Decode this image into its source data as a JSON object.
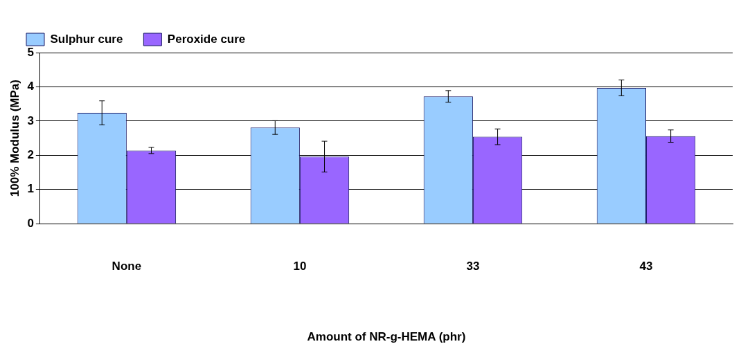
{
  "chart_data": {
    "type": "bar",
    "xlabel": "Amount of NR-g-HEMA (phr)",
    "ylabel": "100% Modulus (MPa)",
    "categories": [
      "None",
      "10",
      "33",
      "43"
    ],
    "series": [
      {
        "name": "Sulphur cure",
        "color": "#99ccff",
        "values": [
          3.24,
          2.81,
          3.72,
          3.97
        ],
        "errors": [
          0.35,
          0.2,
          0.17,
          0.23
        ]
      },
      {
        "name": "Peroxide cure",
        "color": "#9966ff",
        "values": [
          2.14,
          1.96,
          2.54,
          2.56
        ],
        "errors": [
          0.09,
          0.45,
          0.23,
          0.18
        ]
      }
    ],
    "ylim": [
      0,
      5
    ],
    "yticks": [
      0,
      1,
      2,
      3,
      4,
      5
    ],
    "grid": "y",
    "legend": "top left"
  }
}
